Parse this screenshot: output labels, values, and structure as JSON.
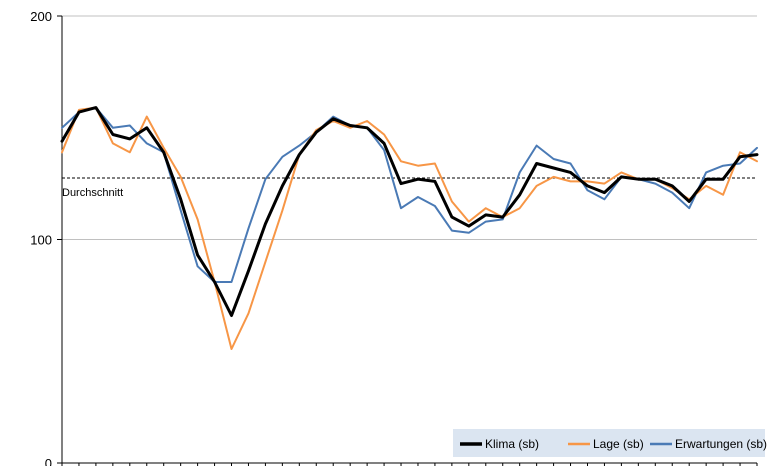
{
  "chart_data": {
    "type": "line",
    "title": "",
    "xlabel": "",
    "ylabel": "",
    "ylim": [
      0,
      200
    ],
    "yticks": [
      0,
      100,
      200
    ],
    "y_tick_labels": [
      "0",
      "100",
      "200"
    ],
    "grid": "horizontal",
    "legend_position": "bottom-right",
    "reference_line": {
      "label": "Durchschnitt",
      "value": 127.5,
      "style": "dashed"
    },
    "x": [
      1,
      2,
      3,
      4,
      5,
      6,
      7,
      8,
      9,
      10,
      11,
      12,
      13,
      14,
      15,
      16,
      17,
      18,
      19,
      20,
      21,
      22,
      23,
      24,
      25,
      26,
      27,
      28,
      29,
      30,
      31,
      32,
      33,
      34,
      35,
      36,
      37,
      38,
      39,
      40,
      41,
      42
    ],
    "series": [
      {
        "name": "Klima (sb)",
        "color": "#000000",
        "width": 3,
        "values": [
          144,
          157,
          159,
          147,
          145,
          150,
          139,
          118,
          93,
          81,
          66,
          86,
          107,
          124,
          138,
          148,
          154,
          151,
          150,
          143,
          125,
          127,
          126,
          110,
          106,
          111,
          110,
          120,
          134,
          132,
          130,
          124,
          121,
          128,
          127,
          127,
          124,
          117,
          127,
          127,
          137,
          138
        ]
      },
      {
        "name": "Lage (sb)",
        "color": "#f79646",
        "width": 2,
        "values": [
          139,
          158,
          159,
          143,
          139,
          155,
          141,
          128,
          109,
          81,
          51,
          67,
          90,
          113,
          138,
          149,
          153,
          150,
          153,
          147,
          135,
          133,
          134,
          117,
          108,
          114,
          110,
          114,
          124,
          128,
          126,
          126,
          125,
          130,
          127,
          127,
          123,
          118,
          124,
          120,
          139,
          135
        ]
      },
      {
        "name": "Erwartungen (sb)",
        "color": "#4a7ab5",
        "width": 2,
        "values": [
          150,
          157,
          159,
          150,
          151,
          143,
          139,
          113,
          88,
          81,
          81,
          105,
          127,
          137,
          142,
          148,
          155,
          151,
          150,
          140,
          114,
          119,
          115,
          104,
          103,
          108,
          109,
          130,
          142,
          136,
          134,
          122,
          118,
          128,
          127,
          125,
          121,
          114,
          130,
          133,
          134,
          141
        ]
      }
    ]
  }
}
